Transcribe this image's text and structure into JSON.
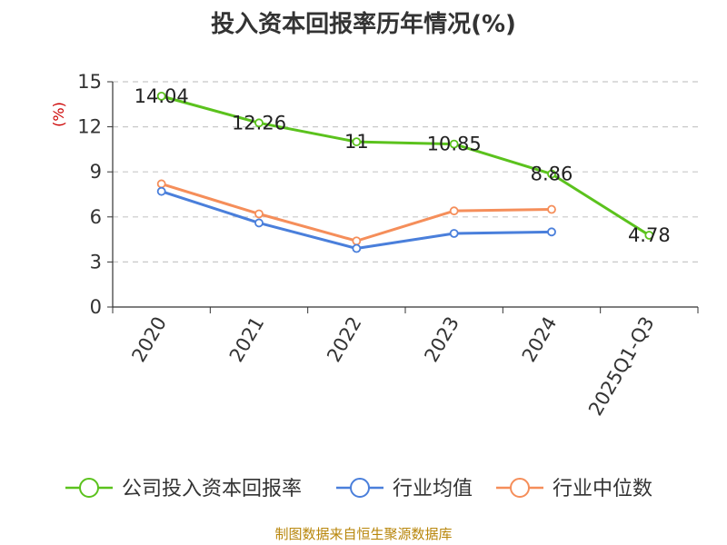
{
  "chart_data": {
    "type": "line",
    "title": "投入资本回报率历年情况(%)",
    "ylabel": "(%)",
    "xlabel": "",
    "categories": [
      "2020",
      "2021",
      "2022",
      "2023",
      "2024",
      "2025Q1-Q3"
    ],
    "ylim": [
      0,
      15
    ],
    "yticks": [
      0,
      3,
      6,
      9,
      12,
      15
    ],
    "grid": true,
    "legend_position": "bottom",
    "series": [
      {
        "name": "公司投入资本回报率",
        "color": "#5bc21d",
        "values": [
          14.04,
          12.26,
          11,
          10.85,
          8.86,
          4.78
        ],
        "labels": [
          "14.04",
          "12.26",
          "11",
          "10.85",
          "8.86",
          "4.78"
        ]
      },
      {
        "name": "行业均值",
        "color": "#4a7fdb",
        "values": [
          7.7,
          5.6,
          3.9,
          4.9,
          5.0,
          null
        ]
      },
      {
        "name": "行业中位数",
        "color": "#f58e5a",
        "values": [
          8.2,
          6.2,
          4.4,
          6.4,
          6.5,
          null
        ]
      }
    ],
    "source": "制图数据来自恒生聚源数据库"
  }
}
